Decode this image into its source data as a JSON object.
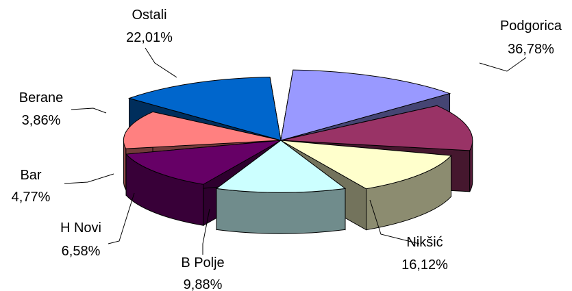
{
  "chart_data": {
    "type": "pie",
    "style": "3d-exploded",
    "slices": [
      {
        "label": "Podgorica",
        "value": 36.78,
        "display": "36,78%",
        "color": "#9999ff"
      },
      {
        "label": "Nikšić",
        "value": 16.12,
        "display": "16,12%",
        "color": "#993366"
      },
      {
        "label": "B Polje",
        "value": 9.88,
        "display": "9,88%",
        "color": "#ffffcc"
      },
      {
        "label": "H Novi",
        "value": 6.58,
        "display": "6,58%",
        "color": "#ccffff"
      },
      {
        "label": "Bar",
        "value": 4.77,
        "display": "4,77%",
        "color": "#660066"
      },
      {
        "label": "Berane",
        "value": 3.86,
        "display": "3,86%",
        "color": "#ff8080"
      },
      {
        "label": "Ostali",
        "value": 22.01,
        "display": "22,01%",
        "color": "#0066cc"
      }
    ]
  }
}
